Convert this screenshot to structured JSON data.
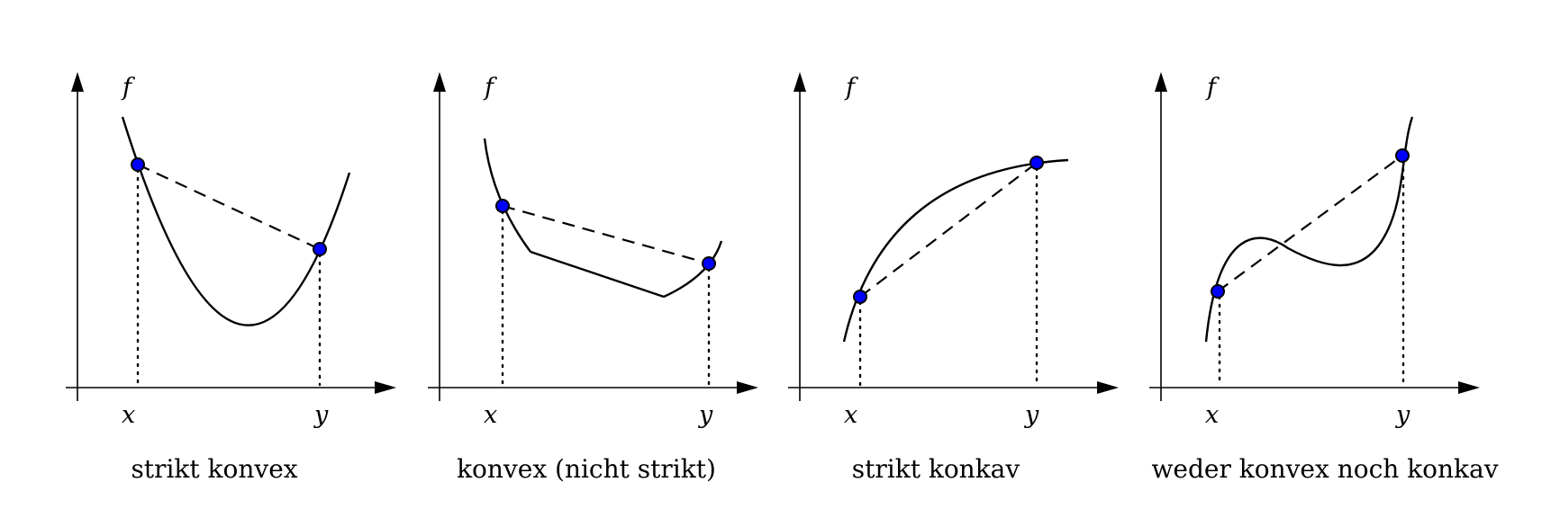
{
  "accent_color": "#0000ff",
  "panels": [
    {
      "id": "strict-convex",
      "f_label": "f",
      "x_label": "x",
      "y_label": "y",
      "caption": "strikt konvex"
    },
    {
      "id": "convex",
      "f_label": "f",
      "x_label": "x",
      "y_label": "y",
      "caption": "konvex (nicht strikt)"
    },
    {
      "id": "strict-concave",
      "f_label": "f",
      "x_label": "x",
      "y_label": "y",
      "caption": "strikt konkav"
    },
    {
      "id": "neither",
      "f_label": "f",
      "x_label": "x",
      "y_label": "y",
      "caption": "weder konvex noch konkav"
    }
  ]
}
